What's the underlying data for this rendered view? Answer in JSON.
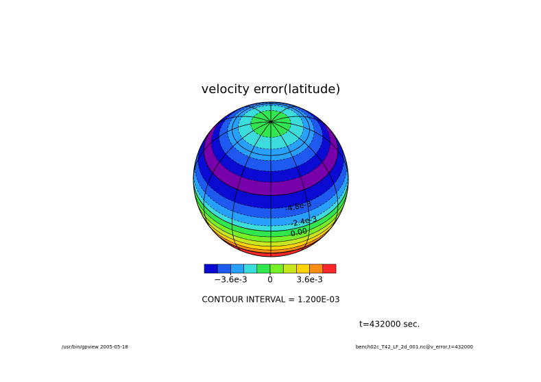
{
  "chart_data": {
    "type": "globe-contour",
    "title": "velocity error(latitude)",
    "colorbar": {
      "range": [
        -0.006,
        0.006
      ],
      "colors": [
        "#0a0ad2",
        "#1e5af0",
        "#28a0ff",
        "#3cdcdc",
        "#32e650",
        "#78f028",
        "#c8e61e",
        "#ffd200",
        "#ff8c14",
        "#ff2828"
      ],
      "ticks": [
        {
          "value": -0.0036,
          "label": "−3.6e-3"
        },
        {
          "value": 0,
          "label": "0"
        },
        {
          "value": 0.0036,
          "label": "3.6e-3"
        }
      ]
    },
    "contour_labels": [
      "-4.8e-3",
      "-2.4e-3",
      "0.00"
    ],
    "contour_interval": "CONTOUR INTERVAL = 1.200E-03",
    "time_label": "t=432000 sec.",
    "footer_left": "/usr/bin/gpview  2005-05-18",
    "footer_right": "bench02c_T42_LF_2d_001.nc@v_error,t=432000"
  }
}
